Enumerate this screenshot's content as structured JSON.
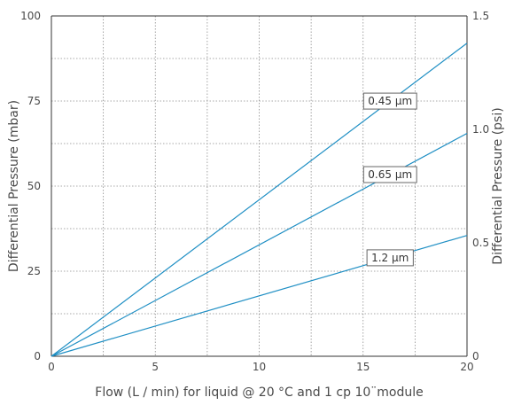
{
  "chart_data": {
    "type": "line",
    "title": "",
    "xlabel": "Flow (L / min) for liquid @ 20 °C and 1 cp 10¨module",
    "ylabel": "Differential Pressure (mbar)",
    "y2label": "Differential Pressure (psi)",
    "xlim": [
      0,
      20
    ],
    "ylim": [
      0,
      100
    ],
    "y2lim": [
      0,
      1.5
    ],
    "xticks": [
      0,
      5,
      10,
      15,
      20
    ],
    "xtick_labels": [
      "0",
      "5",
      "10",
      "15",
      "20"
    ],
    "yticks": [
      0,
      25,
      50,
      75,
      100
    ],
    "ytick_labels": [
      "0",
      "25",
      "50",
      "75",
      "100"
    ],
    "y2ticks": [
      0,
      0.5,
      1.0,
      1.5
    ],
    "y2tick_labels": [
      "0",
      "0.5",
      "1.0",
      "1.5"
    ],
    "grid": true,
    "line_color": "#1f8fc4",
    "series": [
      {
        "name": "0.45 µm",
        "x": [
          0,
          20
        ],
        "y": [
          0,
          92
        ]
      },
      {
        "name": "0.65 µm",
        "x": [
          0,
          20
        ],
        "y": [
          0,
          65.5
        ]
      },
      {
        "name": "1.2 µm",
        "x": [
          0,
          20
        ],
        "y": [
          0,
          35.5
        ]
      }
    ]
  }
}
